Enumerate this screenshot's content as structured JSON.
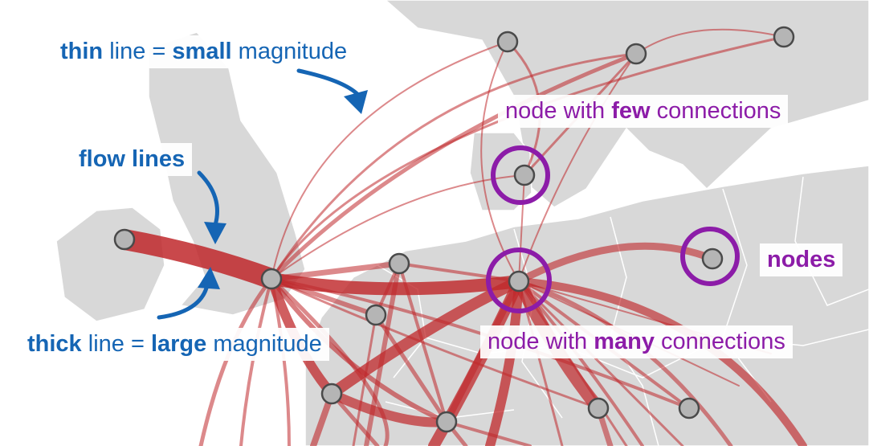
{
  "annotations": {
    "thin_line": {
      "bold": "thin",
      "mid": "line =",
      "bold2": "small",
      "tail": "magnitude"
    },
    "flow_lines": "flow lines",
    "thick_line": {
      "bold": "thick",
      "mid": "line =",
      "bold2": "large",
      "tail": "magnitude"
    },
    "few_connections": {
      "pre": "node with",
      "bold": "few",
      "post": "connections"
    },
    "many_connections": {
      "pre": "node with",
      "bold": "many",
      "post": "connections"
    },
    "nodes": "nodes"
  },
  "colors": {
    "land": "#d8d8d8",
    "water": "#ffffff",
    "flow": "#c0282b",
    "node_fill": "#b5b5b5",
    "node_stroke": "#4a4a4a",
    "annotation_blue": "#1565b4",
    "annotation_purple": "#8c1ca8"
  },
  "icons": [
    "curved-arrow-icon",
    "highlight-circle-icon"
  ]
}
